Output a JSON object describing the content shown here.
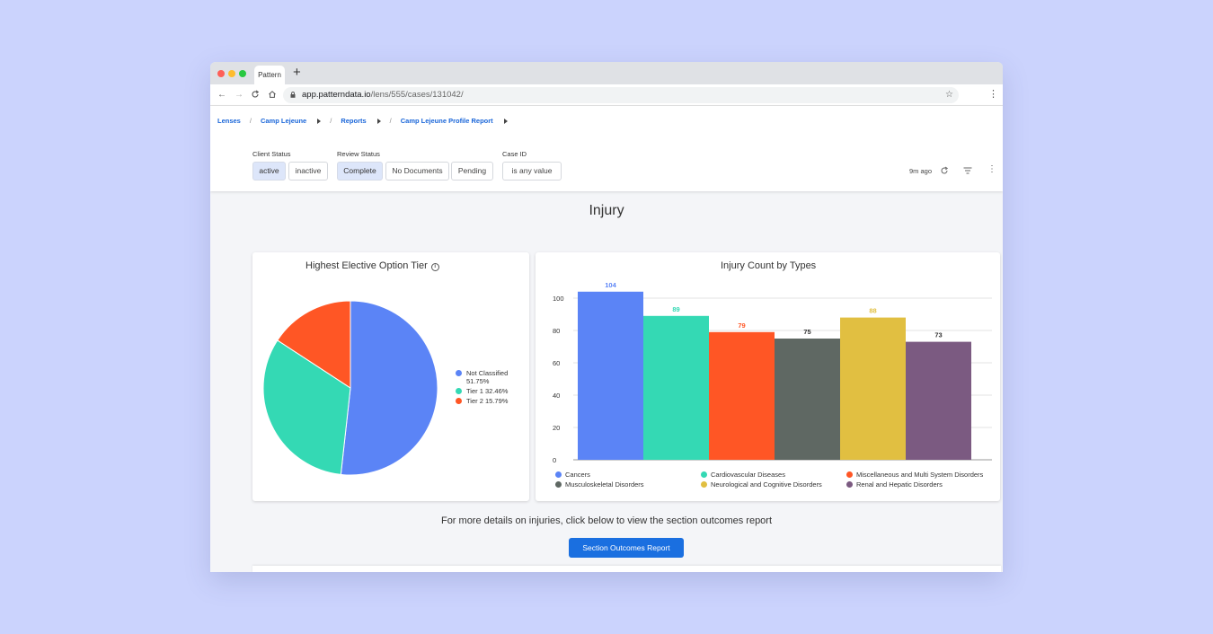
{
  "browser": {
    "tab_title": "Pattern",
    "new_tab": "+",
    "url_host": "app.patterndata.io",
    "url_path": "/lens/555/cases/131042/",
    "traffic_colors": [
      "#fe5f57",
      "#febc2e",
      "#28c840"
    ]
  },
  "breadcrumbs": [
    "Lenses",
    "Camp Lejeune",
    "Reports",
    "Camp Lejeune Profile Report"
  ],
  "filters": {
    "client_status": {
      "label": "Client Status",
      "options": [
        "active",
        "inactive"
      ],
      "selected": "active"
    },
    "review_status": {
      "label": "Review Status",
      "options": [
        "Complete",
        "No Documents",
        "Pending"
      ],
      "selected": "Complete"
    },
    "case_id": {
      "label": "Case ID",
      "value": "is any value"
    }
  },
  "toolbar": {
    "updated": "9m ago"
  },
  "section_title": "Injury",
  "pie_card": {
    "title": "Highest Elective Option Tier",
    "info": "i",
    "legend": [
      {
        "label": "Not Classified",
        "pct": "51.75%",
        "color": "#5b84f6"
      },
      {
        "label": "Tier 1 32.46%",
        "color": "#34d9b4"
      },
      {
        "label": "Tier 2 15.79%",
        "color": "#ff5625"
      }
    ]
  },
  "bar_card": {
    "title": "Injury Count by Types"
  },
  "chart_data": [
    {
      "type": "pie",
      "title": "Highest Elective Option Tier",
      "labels": [
        "Not Classified",
        "Tier 1",
        "Tier 2"
      ],
      "values": [
        51.75,
        32.46,
        15.79
      ],
      "colors": [
        "#5b84f6",
        "#34d9b4",
        "#ff5625"
      ],
      "legend": "right"
    },
    {
      "type": "bar",
      "title": "Injury Count by Types",
      "categories": [
        "Cancers",
        "Cardiovascular Diseases",
        "Miscellaneous and Multi System Disorders",
        "Musculoskeletal Disorders",
        "Neurological and Cognitive Disorders",
        "Renal and Hepatic Disorders"
      ],
      "values": [
        104,
        89,
        79,
        75,
        88,
        73
      ],
      "colors": [
        "#5b84f6",
        "#34d9b4",
        "#ff5625",
        "#5f6863",
        "#e1bf41",
        "#7b5a81"
      ],
      "ylim": [
        0,
        110
      ],
      "yticks": [
        0,
        20,
        40,
        60,
        80,
        100
      ],
      "grid": true,
      "legend": "bottom"
    }
  ],
  "outcome_text": "For more details on injuries, click below to view the section outcomes report",
  "outcome_button": "Section Outcomes Report"
}
